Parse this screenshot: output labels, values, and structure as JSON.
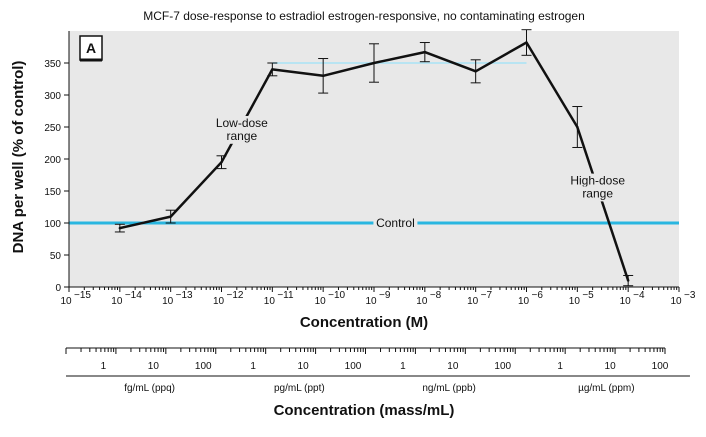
{
  "chart_data": {
    "type": "line",
    "title": "MCF-7 dose-response to estradiol estrogen-responsive, no contaminating estrogen",
    "panel_label": "A",
    "xlabel": "Concentration (M)",
    "ylabel": "DNA per well (% of control)",
    "xscale": "log",
    "xlim": [
      -15,
      -3
    ],
    "ylim": [
      0,
      400
    ],
    "x_tick_exponents": [
      -15,
      -14,
      -13,
      -12,
      -11,
      -10,
      -9,
      -8,
      -7,
      -6,
      -5,
      -4,
      -3
    ],
    "x_tick_labels": [
      "10",
      "10",
      "10",
      "10",
      "10",
      "10",
      "10",
      "10",
      "10",
      "10",
      "10",
      "10",
      "10"
    ],
    "x_tick_superscripts": [
      "−15",
      "−14",
      "−13",
      "−12",
      "−11",
      "−10",
      "−9",
      "−8",
      "−7",
      "−6",
      "−5",
      "−4",
      "−3"
    ],
    "y_ticks": [
      0,
      50,
      100,
      150,
      200,
      250,
      300,
      350
    ],
    "y_tick_labels": [
      "0",
      "50",
      "100",
      "150",
      "200",
      "250",
      "300",
      "350"
    ],
    "grid": false,
    "series": [
      {
        "x": [
          -14,
          -13,
          -12,
          -11,
          -10,
          -9,
          -8,
          -7,
          -6,
          -5,
          -4
        ],
        "values": [
          92,
          110,
          195,
          340,
          330,
          350,
          367,
          337,
          382,
          250,
          10
        ],
        "error": [
          6,
          10,
          10,
          10,
          27,
          30,
          15,
          18,
          20,
          32,
          8
        ]
      }
    ],
    "control_line": {
      "value": 100,
      "label": "Control",
      "color": "#29b6e0"
    },
    "plateau_line": {
      "x_from": -11,
      "x_to": -6,
      "value": 350,
      "color": "#b8e4f2"
    },
    "annotations": [
      {
        "text": "Low-dose",
        "x": -11.6,
        "y": 250
      },
      {
        "text": "range",
        "x": -11.6,
        "y": 230
      },
      {
        "text": "High-dose",
        "x": -4.6,
        "y": 160
      },
      {
        "text": "range",
        "x": -4.6,
        "y": 140
      }
    ],
    "mass_axis": {
      "title": "Concentration (mass/mL)",
      "groups": [
        {
          "ticks": [
            "1",
            "10",
            "100"
          ],
          "unit": "fg/mL (ppq)"
        },
        {
          "ticks": [
            "1",
            "10",
            "100"
          ],
          "unit": "pg/mL (ppt)"
        },
        {
          "ticks": [
            "1",
            "10",
            "100"
          ],
          "unit": "ng/mL (ppb)"
        },
        {
          "ticks": [
            "1",
            "10",
            "100"
          ],
          "unit": "µg/mL (ppm)"
        }
      ]
    },
    "colors": {
      "line": "#111111",
      "control": "#29b6e0",
      "plateau": "#b8e4f2",
      "frame": "#111111"
    }
  }
}
